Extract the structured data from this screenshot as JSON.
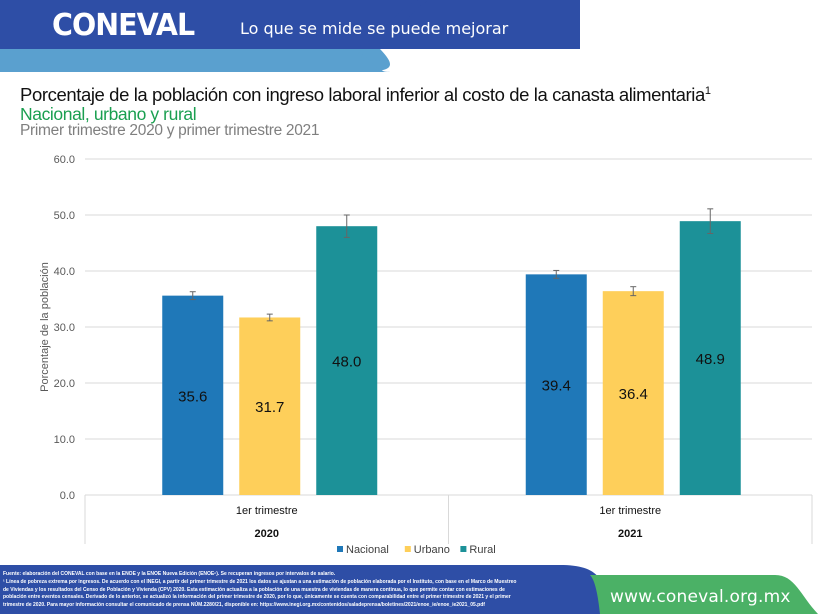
{
  "header": {
    "logo": "CONEVAL",
    "slogan": "Lo que se mide se puede mejorar"
  },
  "colors": {
    "header_blue": "#2e4ea6",
    "header_light_blue": "#5aa0cf",
    "header_teal": "#2393ad",
    "header_green": "#4bb166",
    "nacional": "#1f78b8",
    "urbano": "#fecf5a",
    "rural": "#1c9198",
    "subtitle_green": "#1a9f50"
  },
  "titles": {
    "title": "Porcentaje de la población con ingreso laboral inferior al costo de la canasta alimentaria",
    "title_sup": "1",
    "subtitle": "Nacional, urbano y rural",
    "subtitle2": "Primer trimestre 2020 y primer trimestre 2021"
  },
  "chart_data": {
    "type": "bar",
    "ylabel": "Porcentaje de la población",
    "xlabel": "",
    "ylim": [
      0,
      60
    ],
    "yticks": [
      "0.0",
      "10.0",
      "20.0",
      "30.0",
      "40.0",
      "50.0",
      "60.0"
    ],
    "grid": true,
    "legend_position": "bottom",
    "categories": [
      {
        "sub": "1er trimestre",
        "label": "2020"
      },
      {
        "sub": "1er trimestre",
        "label": "2021"
      }
    ],
    "series": [
      {
        "name": "Nacional",
        "color": "#1f78b8",
        "values": [
          35.6,
          39.4
        ],
        "labels": [
          "35.6",
          "39.4"
        ],
        "errors": [
          0.7,
          0.7
        ]
      },
      {
        "name": "Urbano",
        "color": "#fecf5a",
        "values": [
          31.7,
          36.4
        ],
        "labels": [
          "31.7",
          "36.4"
        ],
        "errors": [
          0.6,
          0.8
        ]
      },
      {
        "name": "Rural",
        "color": "#1c9198",
        "values": [
          48.0,
          48.9
        ],
        "labels": [
          "48.0",
          "48.9"
        ],
        "errors": [
          2.0,
          2.2
        ]
      }
    ]
  },
  "footer": {
    "lines": [
      "Fuente: elaboración del CONEVAL con base en la ENOE y la ENOE Nueva Edición (ENOEⁿ). Se recuperan ingresos por intervalos de salario.",
      "¹ Línea de pobreza extrema por ingresos. De acuerdo con el INEGI, a partir del primer trimestre de 2021 los datos se ajustan a una estimación de población elaborada por el Instituto, con base en el Marco de Muestreo",
      "de Viviendas y los resultados del Censo de Población y Vivienda (CPV) 2020. Esta estimación actualiza a la población de una muestra de viviendas de manera continua, lo que permite contar con estimaciones de",
      "población entre eventos censales. Derivado de lo anterior, se actualizó la información del primer trimestre de 2020, por lo que, únicamente se cuenta con comparabilidad entre el primer trimestre de 2021 y el primer",
      "trimestre de 2020. Para mayor información consultar el comunicado de prensa NÚM.2280/21, disponible en: https://www.inegi.org.mx/contenidos/saladeprensa/boletines/2021/enoe_ie/enoe_ie2021_05.pdf"
    ],
    "url": "www.coneval.org.mx"
  }
}
